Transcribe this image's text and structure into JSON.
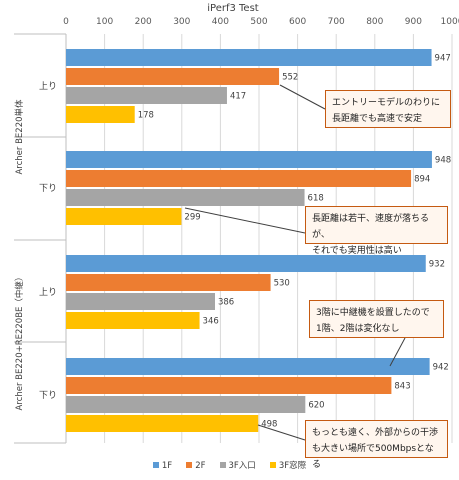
{
  "chart_data": {
    "type": "bar",
    "orientation": "horizontal",
    "title": "iPerf3 Test",
    "xlim": [
      0,
      1000
    ],
    "x_ticks": [
      0,
      100,
      200,
      300,
      400,
      500,
      600,
      700,
      800,
      900,
      1000
    ],
    "grid": true,
    "legend_position": "bottom",
    "series_names": [
      "1F",
      "2F",
      "3F入口",
      "3F窓際"
    ],
    "series_colors": [
      "#5b9bd5",
      "#ed7d31",
      "#a5a5a5",
      "#ffc000"
    ],
    "sections": [
      {
        "name": "Archer BE220単体",
        "groups": [
          {
            "name": "上り",
            "values": [
              947,
              552,
              417,
              178
            ]
          },
          {
            "name": "下り",
            "values": [
              948,
              894,
              618,
              299
            ]
          }
        ]
      },
      {
        "name": "Archer BE220+RE220BE（中継）",
        "groups": [
          {
            "name": "上り",
            "values": [
              932,
              530,
              386,
              346
            ]
          },
          {
            "name": "下り",
            "values": [
              942,
              843,
              620,
              498
            ]
          }
        ]
      }
    ],
    "annotations": [
      {
        "lines": [
          "エントリーモデルのわりに",
          "長距離でも高速で安定"
        ]
      },
      {
        "lines": [
          "長距離は若干、速度が落ちるが、",
          "それでも実用性は高い"
        ]
      },
      {
        "lines": [
          "3階に中継機を設置したので",
          "1階、2階は変化なし"
        ]
      },
      {
        "lines": [
          "もっとも遠く、外部からの干渉",
          "も大きい場所で500Mbpsとなる"
        ]
      }
    ]
  }
}
